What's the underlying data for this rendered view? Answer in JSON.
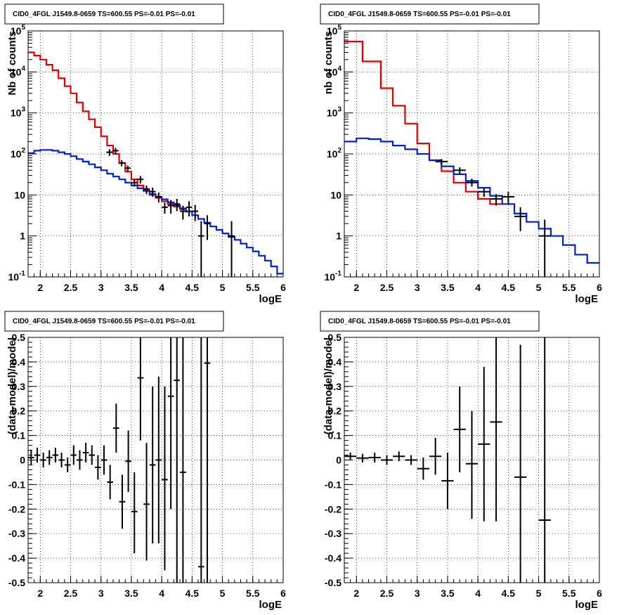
{
  "colors": {
    "data": "#000000",
    "model_total": "#e00000",
    "model_component": "#0022cc",
    "grid": "#000000"
  },
  "chart_data": [
    {
      "type": "line",
      "panel": "top-left",
      "title": "CID0_4FGL J1549.8-0659 TS=600.55 PS=-0.01 PS=-0.01",
      "xlabel": "logE",
      "ylabel": "Nb of counts",
      "yscale": "log",
      "xlim": [
        1.8,
        6
      ],
      "ylim": [
        0.1,
        100000
      ],
      "xticks": [
        "2",
        "2.5",
        "3",
        "3.5",
        "4",
        "4.5",
        "5",
        "5.5",
        "6"
      ],
      "yticks": [
        "10^-1",
        "1",
        "10",
        "10^2",
        "10^3",
        "10^4",
        "10^5"
      ],
      "grid": true,
      "legend": "none",
      "series": [
        {
          "kind": "step",
          "color": "red",
          "edges": [
            1.8,
            1.9,
            2.0,
            2.1,
            2.2,
            2.3,
            2.4,
            2.5,
            2.6,
            2.7,
            2.8,
            2.9,
            3.0,
            3.1,
            3.2,
            3.3,
            3.4,
            3.5,
            3.6,
            3.7,
            3.8,
            3.9,
            4.0,
            4.1,
            4.2,
            4.3,
            4.4,
            4.5
          ],
          "values": [
            30000,
            25000,
            20000,
            15000,
            11000,
            7000,
            4500,
            3000,
            1800,
            1100,
            700,
            450,
            270,
            160,
            100,
            60,
            37,
            24,
            17,
            13,
            10,
            8.5,
            7,
            6,
            5.2,
            4.5,
            4
          ]
        },
        {
          "kind": "step",
          "color": "blue",
          "edges": [
            1.8,
            1.9,
            2.0,
            2.1,
            2.2,
            2.3,
            2.4,
            2.5,
            2.6,
            2.7,
            2.8,
            2.9,
            3.0,
            3.1,
            3.2,
            3.3,
            3.4,
            3.5,
            3.6,
            3.7,
            3.8,
            3.9,
            4.0,
            4.1,
            4.2,
            4.3,
            4.4,
            4.5,
            4.6,
            4.7,
            4.8,
            4.9,
            5.0,
            5.1,
            5.2,
            5.3,
            5.4,
            5.5,
            5.6,
            5.7,
            5.8,
            5.9,
            6.0
          ],
          "values": [
            105,
            120,
            125,
            125,
            120,
            110,
            100,
            88,
            75,
            65,
            56,
            47,
            40,
            33,
            28,
            24,
            20,
            17,
            14.5,
            12.5,
            10.5,
            9,
            7.8,
            6.6,
            5.6,
            4.7,
            3.9,
            3.2,
            2.6,
            2.1,
            1.7,
            1.4,
            1.15,
            0.95,
            0.8,
            0.65,
            0.52,
            0.42,
            0.33,
            0.25,
            0.18,
            0.12
          ]
        },
        {
          "kind": "points",
          "color": "black",
          "x": [
            3.14,
            3.24,
            3.34,
            3.44,
            3.55,
            3.65,
            3.75,
            3.85,
            3.95,
            4.05,
            4.15,
            4.25,
            4.35,
            4.45,
            4.55,
            4.65,
            4.75,
            5.15
          ],
          "xerr": 0.05,
          "y": [
            110,
            120,
            60,
            45,
            20,
            24,
            14,
            12,
            9,
            5,
            5.5,
            6,
            4,
            5,
            4,
            1,
            2,
            1
          ],
          "ylo": [
            90,
            100,
            50,
            38,
            16,
            19,
            10.5,
            9,
            6.5,
            3.5,
            3.5,
            4,
            2.5,
            3,
            2.3,
            0.1,
            0.8,
            0.1
          ],
          "yhi": [
            130,
            140,
            70,
            52,
            24,
            29,
            17,
            15,
            11.5,
            6.5,
            7.5,
            8,
            5.5,
            7,
            5.7,
            2.3,
            3.2,
            2.3
          ]
        }
      ]
    },
    {
      "type": "line",
      "panel": "top-right",
      "title": "CID0_4FGL J1549.8-0659 TS=600.55 PS=-0.01 PS=-0.01",
      "xlabel": "logE",
      "ylabel": "nb of counts",
      "yscale": "log",
      "xlim": [
        1.8,
        6
      ],
      "ylim": [
        0.1,
        100000
      ],
      "xticks": [
        "2",
        "2.5",
        "3",
        "3.5",
        "4",
        "4.5",
        "5",
        "5.5",
        "6"
      ],
      "yticks": [
        "10^-1",
        "1",
        "10",
        "10^2",
        "10^3",
        "10^4",
        "10^5"
      ],
      "grid": true,
      "legend": "none",
      "series": [
        {
          "kind": "step",
          "color": "red",
          "edges": [
            1.8,
            2.1,
            2.4,
            2.6,
            2.8,
            3.0,
            3.2,
            3.4,
            3.6,
            3.8,
            4.0,
            4.2,
            4.4
          ],
          "values": [
            55000,
            18000,
            4000,
            1500,
            550,
            180,
            70,
            38,
            20,
            12,
            8,
            6
          ]
        },
        {
          "kind": "step",
          "color": "blue",
          "edges": [
            1.8,
            2.0,
            2.2,
            2.4,
            2.6,
            2.8,
            3.0,
            3.2,
            3.4,
            3.6,
            3.8,
            4.0,
            4.2,
            4.4,
            4.6,
            4.8,
            5.0,
            5.2,
            5.4,
            5.6,
            5.8,
            6.0
          ],
          "values": [
            200,
            240,
            230,
            200,
            160,
            130,
            100,
            70,
            50,
            32,
            22,
            15,
            9.5,
            6,
            3.5,
            2.2,
            1.5,
            1,
            0.6,
            0.35,
            0.22
          ]
        },
        {
          "kind": "points",
          "color": "black",
          "x": [
            3.4,
            3.7,
            3.9,
            4.1,
            4.3,
            4.5,
            4.7,
            5.1
          ],
          "xerr": 0.1,
          "y": [
            65,
            40,
            20,
            12,
            8,
            9,
            3,
            1
          ],
          "ylo": [
            55,
            33,
            16,
            9,
            5.5,
            6,
            1.3,
            0.1
          ],
          "yhi": [
            75,
            47,
            25,
            15,
            10.5,
            12,
            5,
            2.5
          ]
        }
      ]
    },
    {
      "type": "scatter",
      "panel": "bottom-left",
      "title": "CID0_4FGL J1549.8-0659 TS=600.55 PS=-0.01 PS=-0.01",
      "xlabel": "logE",
      "ylabel": "(data-model)/model",
      "xlim": [
        1.8,
        6
      ],
      "ylim": [
        -0.5,
        0.5
      ],
      "xticks": [
        "2",
        "2.5",
        "3",
        "3.5",
        "4",
        "4.5",
        "5",
        "5.5",
        "6"
      ],
      "yticks": [
        "-0.5",
        "-0.4",
        "-0.3",
        "-0.2",
        "-0.1",
        "0",
        "0.1",
        "0.2",
        "0.3",
        "0.4",
        "0.5"
      ],
      "grid": true,
      "legend": "none",
      "series": [
        {
          "kind": "points",
          "color": "black",
          "x": [
            1.85,
            1.95,
            2.05,
            2.15,
            2.25,
            2.35,
            2.45,
            2.55,
            2.65,
            2.75,
            2.85,
            2.95,
            3.05,
            3.15,
            3.25,
            3.35,
            3.45,
            3.55,
            3.65,
            3.75,
            3.85,
            3.95,
            4.05,
            4.15,
            4.25,
            4.35,
            4.65,
            4.75
          ],
          "xerr": 0.05,
          "y": [
            0.01,
            0.02,
            0.0,
            0.01,
            0.02,
            0.0,
            -0.02,
            0.02,
            0.0,
            0.03,
            0.02,
            -0.03,
            0.0,
            -0.09,
            0.13,
            -0.17,
            -0.005,
            -0.21,
            0.335,
            -0.18,
            -0.02,
            0.0,
            -0.08,
            0.26,
            0.325,
            -0.05,
            -0.435,
            0.395
          ],
          "ylo": [
            -0.02,
            -0.01,
            -0.03,
            -0.02,
            -0.01,
            -0.03,
            -0.05,
            -0.02,
            -0.04,
            -0.01,
            -0.02,
            -0.08,
            -0.06,
            -0.16,
            0.03,
            -0.28,
            -0.13,
            -0.38,
            0.08,
            -0.41,
            -0.34,
            -0.34,
            -0.45,
            -0.2,
            -0.5,
            -0.5,
            -0.5,
            -0.5
          ],
          "yhi": [
            0.04,
            0.05,
            0.03,
            0.04,
            0.05,
            0.03,
            0.01,
            0.06,
            0.04,
            0.07,
            0.06,
            0.02,
            0.06,
            -0.02,
            0.23,
            -0.06,
            0.12,
            -0.05,
            0.5,
            0.07,
            0.3,
            0.34,
            0.3,
            0.5,
            0.5,
            0.5,
            0.5,
            0.5
          ]
        }
      ]
    },
    {
      "type": "scatter",
      "panel": "bottom-right",
      "title": "CID0_4FGL J1549.8-0659 TS=600.55 PS=-0.01 PS=-0.01",
      "xlabel": "logE",
      "ylabel": "(data-model)/model",
      "xlim": [
        1.8,
        6
      ],
      "ylim": [
        -0.5,
        0.5
      ],
      "xticks": [
        "2",
        "2.5",
        "3",
        "3.5",
        "4",
        "4.5",
        "5",
        "5.5",
        "6"
      ],
      "yticks": [
        "-0.5",
        "-0.4",
        "-0.3",
        "-0.2",
        "-0.1",
        "0",
        "0.1",
        "0.2",
        "0.3",
        "0.4",
        "0.5"
      ],
      "grid": true,
      "legend": "none",
      "series": [
        {
          "kind": "points",
          "color": "black",
          "x": [
            1.9,
            2.1,
            2.3,
            2.5,
            2.7,
            2.9,
            3.1,
            3.3,
            3.5,
            3.7,
            3.9,
            4.1,
            4.3,
            4.7,
            5.1
          ],
          "xerr": 0.1,
          "y": [
            0.015,
            0.008,
            0.01,
            0.0,
            0.015,
            0.0,
            -0.035,
            0.015,
            -0.085,
            0.125,
            -0.015,
            0.065,
            0.155,
            -0.07,
            -0.245
          ],
          "ylo": [
            0.0,
            -0.01,
            -0.01,
            -0.02,
            -0.005,
            -0.02,
            -0.08,
            -0.06,
            -0.2,
            -0.05,
            -0.24,
            -0.25,
            -0.25,
            -0.5,
            -0.5
          ],
          "yhi": [
            0.03,
            0.025,
            0.03,
            0.02,
            0.035,
            0.02,
            0.01,
            0.09,
            0.03,
            0.3,
            0.2,
            0.38,
            0.5,
            0.47,
            0.5
          ]
        }
      ]
    }
  ]
}
